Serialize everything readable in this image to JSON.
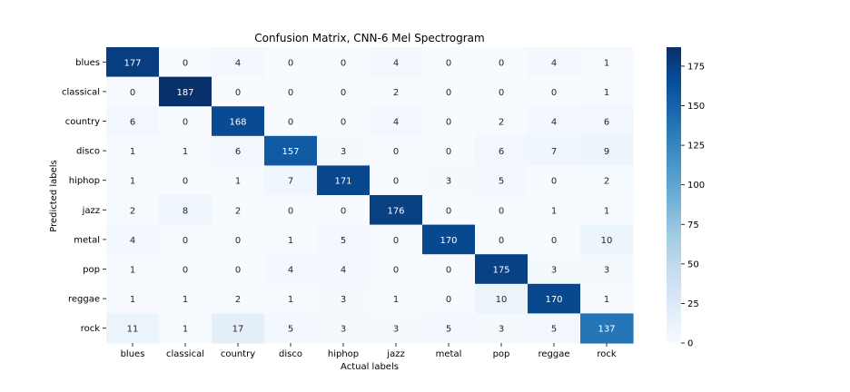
{
  "chart_data": {
    "type": "heatmap",
    "title": "Confusion Matrix, CNN-6 Mel Spectrogram",
    "xlabel": "Actual labels",
    "ylabel": "Predicted labels",
    "x_categories": [
      "blues",
      "classical",
      "country",
      "disco",
      "hiphop",
      "jazz",
      "metal",
      "pop",
      "reggae",
      "rock"
    ],
    "y_categories": [
      "blues",
      "classical",
      "country",
      "disco",
      "hiphop",
      "jazz",
      "metal",
      "pop",
      "reggae",
      "rock"
    ],
    "values": [
      [
        177,
        0,
        4,
        0,
        0,
        4,
        0,
        0,
        4,
        1
      ],
      [
        0,
        187,
        0,
        0,
        0,
        2,
        0,
        0,
        0,
        1
      ],
      [
        6,
        0,
        168,
        0,
        0,
        4,
        0,
        2,
        4,
        6
      ],
      [
        1,
        1,
        6,
        157,
        3,
        0,
        0,
        6,
        7,
        9
      ],
      [
        1,
        0,
        1,
        7,
        171,
        0,
        3,
        5,
        0,
        2
      ],
      [
        2,
        8,
        2,
        0,
        0,
        176,
        0,
        0,
        1,
        1
      ],
      [
        4,
        0,
        0,
        1,
        5,
        0,
        170,
        0,
        0,
        10
      ],
      [
        1,
        0,
        0,
        4,
        4,
        0,
        0,
        175,
        3,
        3
      ],
      [
        1,
        1,
        2,
        1,
        3,
        1,
        0,
        10,
        170,
        1
      ],
      [
        11,
        1,
        17,
        5,
        3,
        3,
        5,
        3,
        5,
        137
      ]
    ],
    "colormap": "Blues",
    "colorbar": {
      "range": [
        0,
        187
      ],
      "ticks": [
        0,
        25,
        50,
        75,
        100,
        125,
        150,
        175
      ]
    },
    "annotations_shown": true
  }
}
